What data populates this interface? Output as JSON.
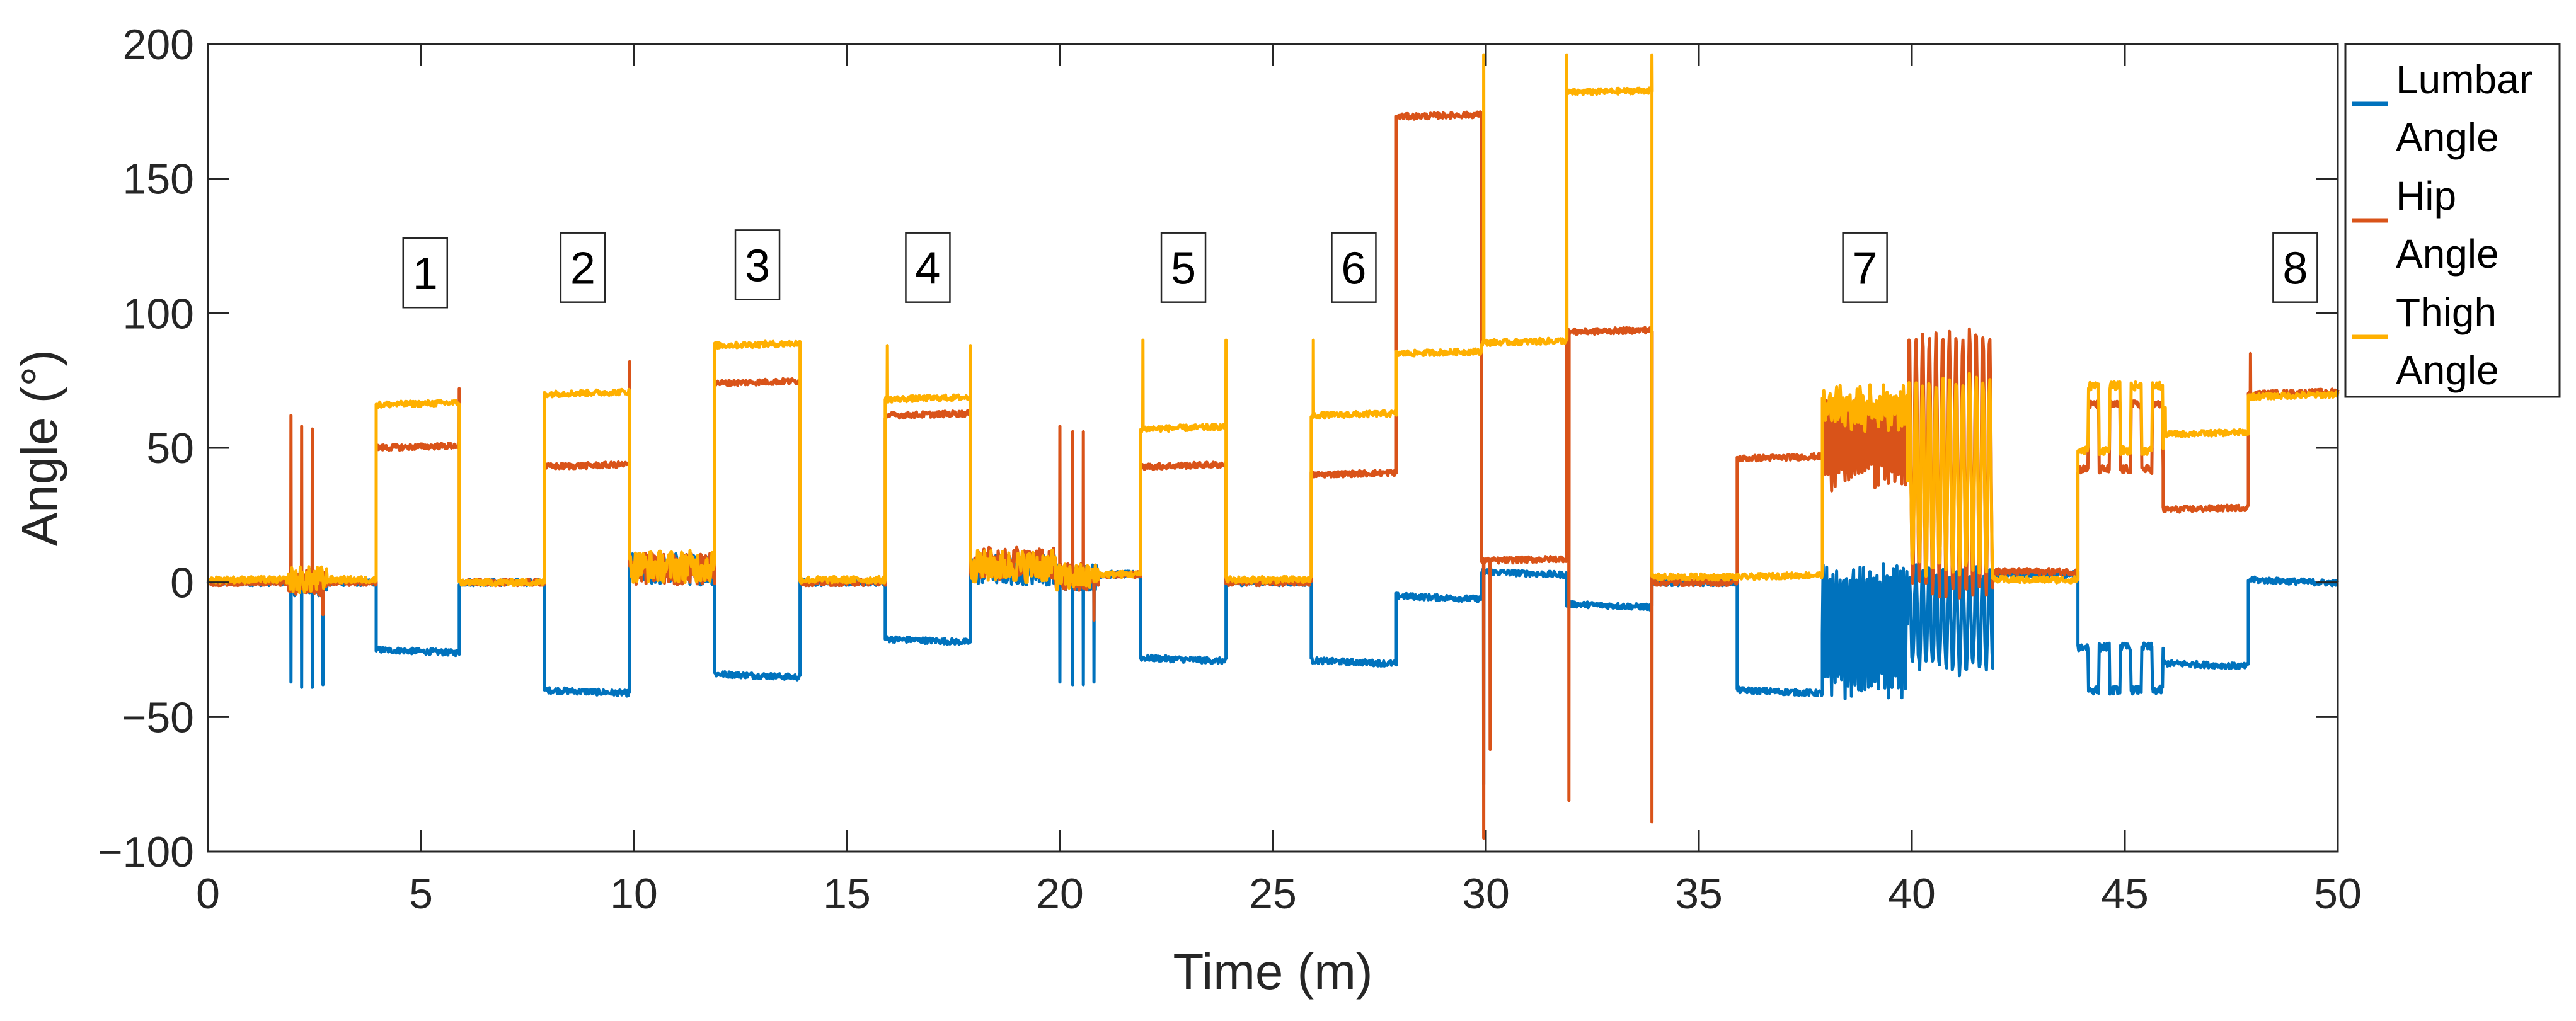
{
  "chart_data": {
    "type": "line",
    "title": "",
    "xlabel": "Time (m)",
    "ylabel": "Angle (°)",
    "xlim": [
      0,
      50
    ],
    "ylim": [
      -100,
      200
    ],
    "xticks": [
      0,
      5,
      10,
      15,
      20,
      25,
      30,
      35,
      40,
      45,
      50
    ],
    "yticks": [
      -100,
      -50,
      0,
      50,
      100,
      150,
      200
    ],
    "xtick_labels": [
      "0",
      "5",
      "10",
      "15",
      "20",
      "25",
      "30",
      "35",
      "40",
      "45",
      "50"
    ],
    "ytick_labels": [
      "−100",
      "−50",
      "0",
      "50",
      "100",
      "150",
      "200"
    ],
    "grid": false,
    "legend_position": "outside-right-top",
    "annotations": [
      {
        "label": "1",
        "x": 5.1,
        "y": 115
      },
      {
        "label": "2",
        "x": 8.8,
        "y": 117
      },
      {
        "label": "3",
        "x": 12.9,
        "y": 118
      },
      {
        "label": "4",
        "x": 16.9,
        "y": 117
      },
      {
        "label": "5",
        "x": 22.9,
        "y": 117
      },
      {
        "label": "6",
        "x": 26.9,
        "y": 117
      },
      {
        "label": "7",
        "x": 38.9,
        "y": 117
      },
      {
        "label": "8",
        "x": 49.0,
        "y": 117
      }
    ],
    "segments": [
      {
        "t0": 0,
        "t1": 1.9,
        "lumbar": 0,
        "hip": 0,
        "thigh": 1,
        "pattern": "flat"
      },
      {
        "t0": 1.9,
        "t1": 2.8,
        "lumbar": 0,
        "hip": 0,
        "thigh": 1,
        "pattern": "bursts4"
      },
      {
        "t0": 2.8,
        "t1": 3.95,
        "lumbar": 0,
        "hip": 0,
        "thigh": 1,
        "pattern": "flat"
      },
      {
        "t0": 3.95,
        "t1": 5.9,
        "lumbar": -25,
        "hip": 50,
        "thigh": 66,
        "pattern": "hold"
      },
      {
        "t0": 5.9,
        "t1": 7.9,
        "lumbar": 0,
        "hip": 0,
        "thigh": 0,
        "pattern": "flat"
      },
      {
        "t0": 7.9,
        "t1": 9.9,
        "lumbar": -40,
        "hip": 43,
        "thigh": 70,
        "pattern": "hold"
      },
      {
        "t0": 9.9,
        "t1": 11.9,
        "lumbar": 5,
        "hip": 5,
        "thigh": 6,
        "pattern": "noisy"
      },
      {
        "t0": 11.9,
        "t1": 13.9,
        "lumbar": -34,
        "hip": 74,
        "thigh": 88,
        "pattern": "hold"
      },
      {
        "t0": 13.9,
        "t1": 15.9,
        "lumbar": 0,
        "hip": 0,
        "thigh": 1,
        "pattern": "flat"
      },
      {
        "t0": 15.9,
        "t1": 17.9,
        "lumbar": -21,
        "hip": 62,
        "thigh": 68,
        "pattern": "hold"
      },
      {
        "t0": 17.9,
        "t1": 19.9,
        "lumbar": 5,
        "hip": 7,
        "thigh": 6,
        "pattern": "noisy"
      },
      {
        "t0": 19.9,
        "t1": 20.9,
        "lumbar": 2,
        "hip": 2,
        "thigh": 2,
        "pattern": "bursts4"
      },
      {
        "t0": 20.9,
        "t1": 21.9,
        "lumbar": 3,
        "hip": 3,
        "thigh": 3,
        "pattern": "flat"
      },
      {
        "t0": 21.9,
        "t1": 23.9,
        "lumbar": -28,
        "hip": 43,
        "thigh": 57,
        "pattern": "hold"
      },
      {
        "t0": 23.9,
        "t1": 25.9,
        "lumbar": 0,
        "hip": 0,
        "thigh": 1,
        "pattern": "flat"
      },
      {
        "t0": 25.9,
        "t1": 27.9,
        "lumbar": -29,
        "hip": 40,
        "thigh": 62,
        "pattern": "hold"
      },
      {
        "t0": 27.9,
        "t1": 29.9,
        "lumbar": -5,
        "hip": 173,
        "thigh": 85,
        "pattern": "hold"
      },
      {
        "t0": 29.9,
        "t1": 31.9,
        "lumbar": 4,
        "hip": 8,
        "thigh": 89,
        "pattern": "hold"
      },
      {
        "t0": 31.9,
        "t1": 33.9,
        "lumbar": -8,
        "hip": 93,
        "thigh": 182,
        "pattern": "hold"
      },
      {
        "t0": 33.9,
        "t1": 35.9,
        "lumbar": 0,
        "hip": 0,
        "thigh": 2,
        "pattern": "flat"
      },
      {
        "t0": 35.9,
        "t1": 37.9,
        "lumbar": -40,
        "hip": 46,
        "thigh": 2,
        "pattern": "hold"
      },
      {
        "t0": 37.9,
        "t1": 39.9,
        "lumbar": -18,
        "hip": 52,
        "thigh": 65,
        "pattern": "fast"
      },
      {
        "t0": 39.9,
        "t1": 41.9,
        "lumbar": -14,
        "hip": 45,
        "thigh": 40,
        "pattern": "oscillate"
      },
      {
        "t0": 41.9,
        "t1": 43.9,
        "lumbar": 3,
        "hip": 4,
        "thigh": 1,
        "pattern": "flat"
      },
      {
        "t0": 43.9,
        "t1": 45.9,
        "lumbar": -32,
        "hip": 48,
        "thigh": 55,
        "pattern": "steps"
      },
      {
        "t0": 45.9,
        "t1": 47.9,
        "lumbar": -30,
        "hip": 27,
        "thigh": 55,
        "pattern": "hold"
      },
      {
        "t0": 47.9,
        "t1": 50,
        "lumbar": 1,
        "hip": 70,
        "thigh": 69,
        "pattern": "hold"
      }
    ],
    "series": [
      {
        "name": "Lumbar Angle",
        "key": "lumbar",
        "color": "#0072BD"
      },
      {
        "name": "Hip Angle",
        "key": "hip",
        "color": "#D95319"
      },
      {
        "name": "Thigh Angle",
        "key": "thigh",
        "color": "#FFB000"
      }
    ],
    "spikes": [
      {
        "series": "lumbar",
        "t": 1.95,
        "v": -37
      },
      {
        "series": "lumbar",
        "t": 2.2,
        "v": -39
      },
      {
        "series": "lumbar",
        "t": 2.45,
        "v": -39
      },
      {
        "series": "lumbar",
        "t": 2.7,
        "v": -38
      },
      {
        "series": "hip",
        "t": 1.95,
        "v": 62
      },
      {
        "series": "hip",
        "t": 2.2,
        "v": 58
      },
      {
        "series": "hip",
        "t": 2.45,
        "v": 57
      },
      {
        "series": "hip",
        "t": 2.7,
        "v": -12
      },
      {
        "series": "lumbar",
        "t": 20.0,
        "v": -37
      },
      {
        "series": "lumbar",
        "t": 20.3,
        "v": -38
      },
      {
        "series": "lumbar",
        "t": 20.55,
        "v": -38
      },
      {
        "series": "lumbar",
        "t": 20.8,
        "v": -37
      },
      {
        "series": "hip",
        "t": 20.0,
        "v": 58
      },
      {
        "series": "hip",
        "t": 20.3,
        "v": 56
      },
      {
        "series": "hip",
        "t": 20.55,
        "v": 56
      },
      {
        "series": "hip",
        "t": 20.8,
        "v": -14
      },
      {
        "series": "thigh",
        "t": 11.92,
        "v": 89
      },
      {
        "series": "thigh",
        "t": 15.95,
        "v": 88
      },
      {
        "series": "thigh",
        "t": 17.9,
        "v": 88
      },
      {
        "series": "thigh",
        "t": 21.95,
        "v": 90
      },
      {
        "series": "thigh",
        "t": 23.9,
        "v": 90
      },
      {
        "series": "thigh",
        "t": 25.95,
        "v": 90
      },
      {
        "series": "hip",
        "t": 9.9,
        "v": 82
      },
      {
        "series": "hip",
        "t": 5.9,
        "v": 72
      },
      {
        "series": "hip",
        "t": 29.95,
        "v": -95
      },
      {
        "series": "hip",
        "t": 30.1,
        "v": -62
      },
      {
        "series": "thigh",
        "t": 29.95,
        "v": 196
      },
      {
        "series": "thigh",
        "t": 31.9,
        "v": 196
      },
      {
        "series": "thigh",
        "t": 33.9,
        "v": 196
      },
      {
        "series": "hip",
        "t": 31.95,
        "v": -81
      },
      {
        "series": "hip",
        "t": 33.9,
        "v": -89
      },
      {
        "series": "lumbar",
        "t": 29.95,
        "v": -75
      },
      {
        "series": "hip",
        "t": 47.95,
        "v": 85
      },
      {
        "series": "thigh",
        "t": 45.95,
        "v": 65
      }
    ]
  },
  "legend": {
    "entries": [
      {
        "line1": "Lumbar",
        "line2": "Angle",
        "color": "#0072BD"
      },
      {
        "line1": "Hip",
        "line2": "Angle",
        "color": "#D95319"
      },
      {
        "line1": "Thigh",
        "line2": "Angle",
        "color": "#FFB000"
      }
    ]
  }
}
